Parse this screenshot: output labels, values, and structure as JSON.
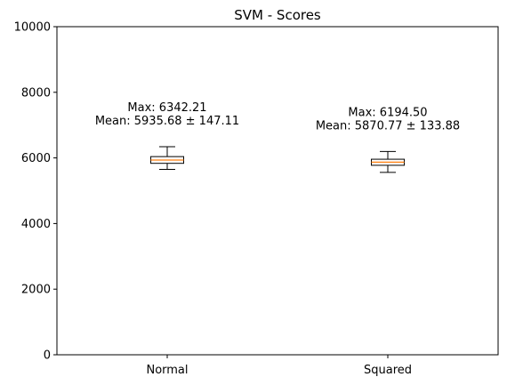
{
  "chart_data": {
    "type": "box",
    "title": "SVM - Scores",
    "xlabel": "",
    "ylabel": "",
    "ylim": [
      0,
      10000
    ],
    "yticks": [
      0,
      2000,
      4000,
      6000,
      8000,
      10000
    ],
    "ytick_labels": [
      "0",
      "2000",
      "4000",
      "6000",
      "8000",
      "10000"
    ],
    "grid": false,
    "categories": [
      "Normal",
      "Squared"
    ],
    "boxes": [
      {
        "category": "Normal",
        "whisker_low": 5650,
        "q1": 5835,
        "median": 5935,
        "q3": 6040,
        "whisker_high": 6342.21,
        "annotation": [
          "Max: 6342.21",
          "Mean: 5935.68 ± 147.11"
        ]
      },
      {
        "category": "Squared",
        "whisker_low": 5560,
        "q1": 5775,
        "median": 5870,
        "q3": 5960,
        "whisker_high": 6194.5,
        "annotation": [
          "Max: 6194.50",
          "Mean: 5870.77 ± 133.88"
        ]
      }
    ],
    "colors": {
      "box": "#000000",
      "median": "#ff7f0e",
      "background": "#ffffff"
    }
  }
}
